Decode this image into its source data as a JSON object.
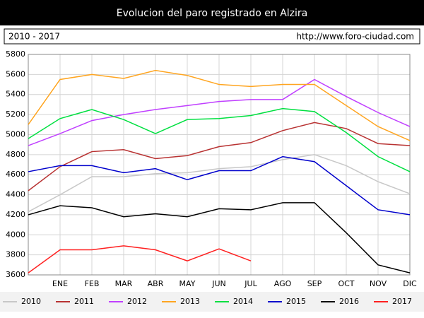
{
  "chart_data": {
    "type": "line",
    "title": "Evolucion del paro registrado en Alzira",
    "subtitle": "2010 - 2017",
    "url": "http://www.foro-ciudad.com",
    "categories": [
      null,
      "ENE",
      "FEB",
      "MAR",
      "ABR",
      "MAY",
      "JUN",
      "JUL",
      "AGO",
      "SEP",
      "OCT",
      "NOV",
      "DIC"
    ],
    "ylim": [
      3600,
      5800
    ],
    "yticks": [
      3600,
      3800,
      4000,
      4200,
      4400,
      4600,
      4800,
      5000,
      5200,
      5400,
      5600,
      5800
    ],
    "grid": true,
    "legend": "bottom",
    "series": [
      {
        "name": "2010",
        "color": "#c8c8c8",
        "values": [
          4230,
          4400,
          4580,
          4580,
          4610,
          4620,
          4660,
          4680,
          4750,
          4800,
          4690,
          4530,
          4410
        ]
      },
      {
        "name": "2011",
        "color": "#b83232",
        "values": [
          4440,
          4680,
          4830,
          4850,
          4760,
          4790,
          4880,
          4920,
          5040,
          5120,
          5060,
          4910,
          4890
        ]
      },
      {
        "name": "2012",
        "color": "#c040ff",
        "values": [
          4890,
          5010,
          5140,
          5200,
          5250,
          5290,
          5330,
          5350,
          5350,
          5550,
          5380,
          5220,
          5080
        ]
      },
      {
        "name": "2013",
        "color": "#ffa520",
        "values": [
          5100,
          5550,
          5600,
          5560,
          5640,
          5590,
          5500,
          5480,
          5500,
          5500,
          5290,
          5080,
          4940
        ]
      },
      {
        "name": "2014",
        "color": "#00e040",
        "values": [
          4960,
          5160,
          5250,
          5150,
          5010,
          5150,
          5160,
          5190,
          5260,
          5230,
          5020,
          4780,
          4630
        ]
      },
      {
        "name": "2015",
        "color": "#0000cc",
        "values": [
          4630,
          4690,
          4690,
          4620,
          4660,
          4550,
          4640,
          4640,
          4780,
          4730,
          4490,
          4250,
          4200
        ]
      },
      {
        "name": "2016",
        "color": "#000000",
        "values": [
          4200,
          4290,
          4270,
          4180,
          4210,
          4180,
          4260,
          4250,
          4320,
          4320,
          4020,
          3700,
          3620
        ]
      },
      {
        "name": "2017",
        "color": "#ff2020",
        "values": [
          3620,
          3850,
          3850,
          3890,
          3850,
          3740,
          3860,
          3740,
          null,
          null,
          null,
          null,
          null
        ]
      }
    ]
  }
}
